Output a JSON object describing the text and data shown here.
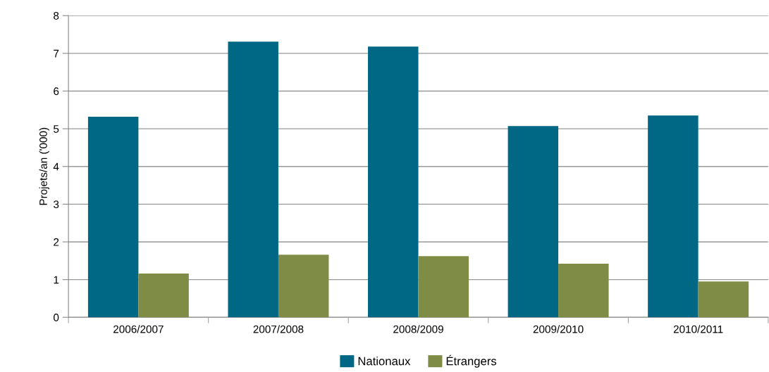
{
  "chart_data": {
    "type": "bar",
    "ylabel": "Projets/an ('000)",
    "categories": [
      "2006/2007",
      "2007/2008",
      "2008/2009",
      "2009/2010",
      "2010/2011"
    ],
    "series": [
      {
        "name": "Nationaux",
        "color": "#006885",
        "values": [
          5.32,
          7.31,
          7.18,
          5.07,
          5.35
        ]
      },
      {
        "name": "Étrangers",
        "color": "#7f8c45",
        "values": [
          1.16,
          1.66,
          1.62,
          1.42,
          0.95
        ]
      }
    ],
    "ylim": [
      0,
      8
    ],
    "yticks": [
      0,
      1,
      2,
      3,
      4,
      5,
      6,
      7,
      8
    ],
    "grid": "y",
    "legend": "bottom"
  }
}
